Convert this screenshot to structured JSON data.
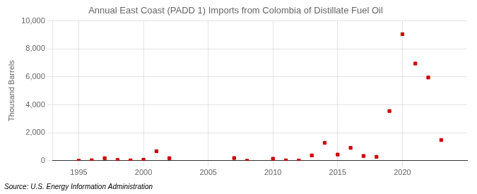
{
  "chart_data": {
    "type": "scatter",
    "title": "Annual East Coast (PADD 1) Imports from Colombia of Distillate Fuel Oil",
    "ylabel": "Thousand Barrels",
    "annotations": [
      "Source: U.S. Energy Information Administration"
    ],
    "x": [
      1995,
      1996,
      1997,
      1998,
      1999,
      2000,
      2001,
      2002,
      2007,
      2008,
      2010,
      2011,
      2012,
      2013,
      2014,
      2015,
      2016,
      2017,
      2018,
      2019,
      2020,
      2021,
      2022,
      2023
    ],
    "values": [
      5,
      30,
      180,
      50,
      25,
      70,
      680,
      180,
      190,
      0,
      140,
      25,
      15,
      380,
      1280,
      440,
      920,
      340,
      280,
      3550,
      9050,
      6950,
      5950,
      1480
    ],
    "color": "#cc0000",
    "marker": "square",
    "xlim": [
      1993,
      2025
    ],
    "xticks": [
      1995,
      2000,
      2005,
      2010,
      2015,
      2020
    ],
    "ylim": [
      0,
      10000
    ],
    "yticks": [
      0,
      {
        "value": 2000,
        "label": "2,000"
      },
      {
        "value": 4000,
        "label": "4,000"
      },
      {
        "value": 6000,
        "label": "6,000"
      },
      {
        "value": 8000,
        "label": "8,000"
      },
      {
        "value": 10000,
        "label": "10,000"
      }
    ],
    "grid": true
  }
}
